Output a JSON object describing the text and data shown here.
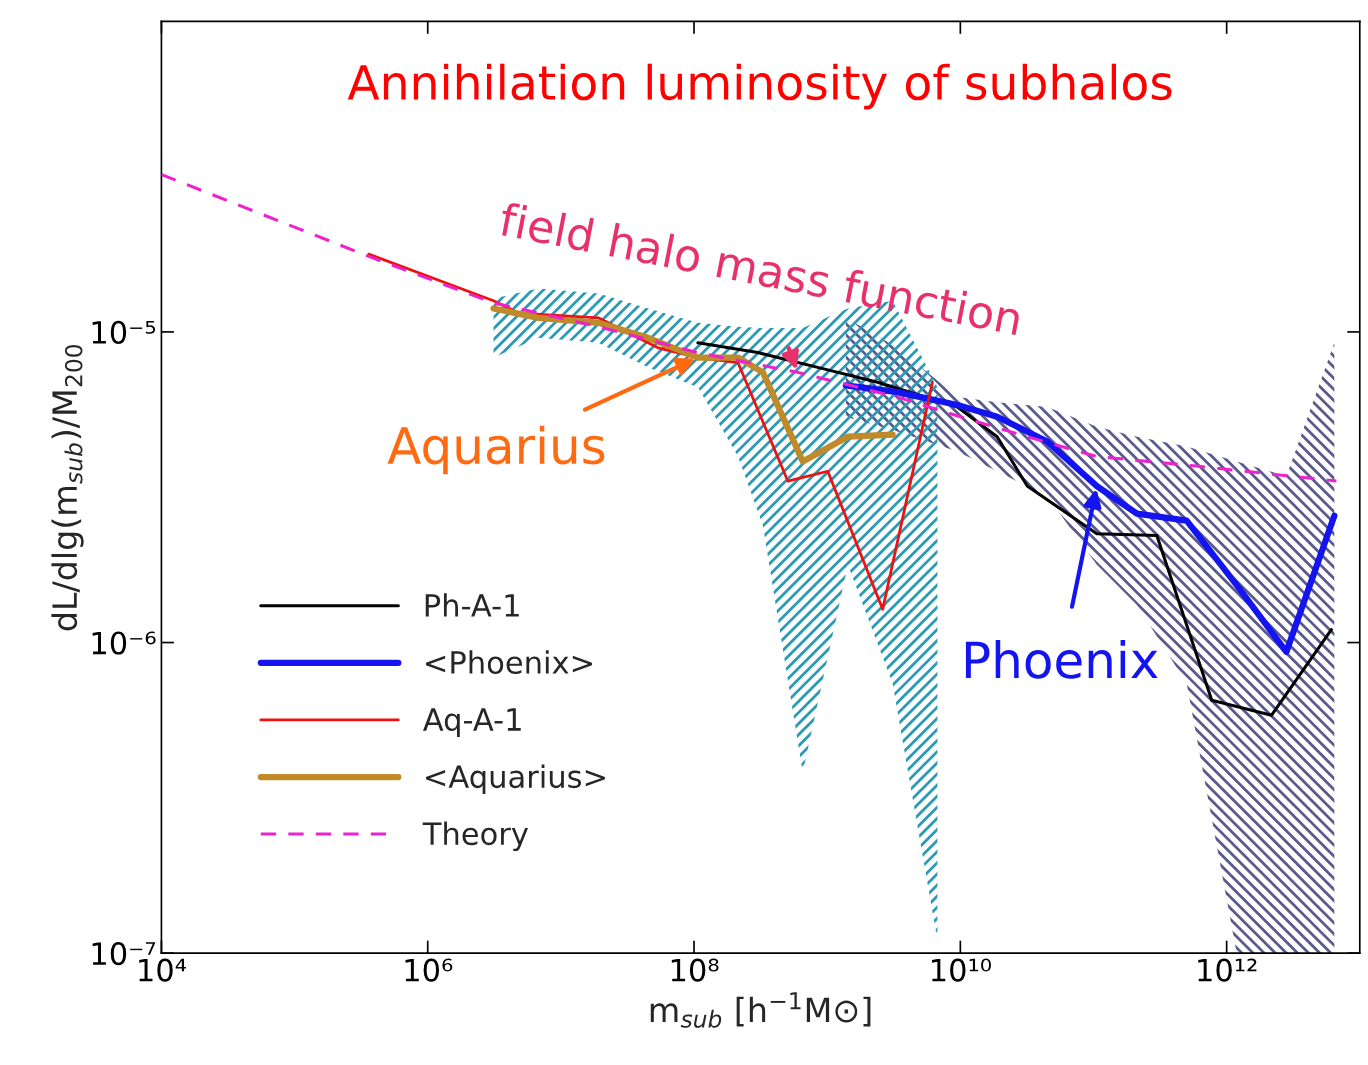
{
  "chart_data": {
    "type": "line",
    "title": "Annihilation luminosity of subhalos",
    "xlabel": "m$_{sub}$ [h$^{−1}$M⊙]",
    "ylabel": "dL/dlg(m$_{sub}$)/M$_{200}$",
    "log": "xy",
    "xlim": [
      10000.0,
      10000000000000.0
    ],
    "ylim": [
      1e-07,
      0.0001
    ],
    "xticks": [
      {
        "value": 10000.0,
        "label": "10⁴"
      },
      {
        "value": 1000000.0,
        "label": "10⁶"
      },
      {
        "value": 100000000.0,
        "label": "10⁸"
      },
      {
        "value": 10000000000.0,
        "label": "10¹⁰"
      },
      {
        "value": 1000000000000.0,
        "label": "10¹²"
      }
    ],
    "yticks": [
      {
        "value": 1e-07,
        "label": "10⁻⁷"
      },
      {
        "value": 1e-06,
        "label": "10⁻⁶"
      },
      {
        "value": 1e-05,
        "label": "10⁻⁵"
      }
    ],
    "grid": false,
    "legend": "lower left",
    "series": [
      {
        "name": "Ph-A-1",
        "color": "#000000",
        "x": [
          107000000.0,
          301000000.0,
          849000000.0,
          2390000000.0,
          9510000000.0,
          18900000000.0,
          31800000000.0,
          106000000000.0,
          299000000000.0,
          773000000000.0,
          2170000000000.0,
          6120000000000.0
        ],
        "values": [
          9.23e-06,
          8.58e-06,
          7.69e-06,
          6.89e-06,
          5.73e-06,
          4.6e-06,
          3.19e-06,
          2.24e-06,
          2.21e-06,
          6.52e-07,
          5.83e-07,
          1.1e-06
        ]
      },
      {
        "name": "<Phoenix>",
        "color": "#1414f0",
        "x": [
          1380000000.0,
          3370000000.0,
          9510000000.0,
          18900000000.0,
          44900000000.0,
          106000000000.0,
          212000000000.0,
          501000000000.0,
          1190000000000.0,
          2810000000000.0,
          6440000000000.0
        ],
        "values": [
          6.73e-06,
          6.4e-06,
          5.82e-06,
          5.33e-06,
          4.44e-06,
          3.19e-06,
          2.6e-06,
          2.47e-06,
          1.53e-06,
          9.33e-07,
          2.56e-06
        ],
        "upper": [
          1.11e-05,
          8.89e-06,
          6.17e-06,
          5.94e-06,
          5.73e-06,
          4.95e-06,
          4.6e-06,
          4.28e-06,
          3.83e-06,
          3.43e-06,
          9.23e-06
        ],
        "lower": [
          5.33e-06,
          4.78e-06,
          4.12e-06,
          3.56e-06,
          2.96e-06,
          1.78e-06,
          1.32e-06,
          7.38e-07,
          1e-07,
          1e-07,
          1e-07
        ]
      },
      {
        "name": "Aq-A-1",
        "color": "#ee1111",
        "x": [
          361000.0,
          3120000.0,
          4810000.0,
          19100000.0,
          53700000.0,
          107000000.0,
          214000000.0,
          506000000.0,
          1010000000.0,
          2610000000.0,
          6170000000.0
        ],
        "values": [
          1.78e-05,
          1.26e-05,
          1.15e-05,
          1.11e-05,
          8.89e-06,
          8.27e-06,
          7.96e-06,
          3.31e-06,
          3.56e-06,
          1.28e-06,
          6.89e-06
        ]
      },
      {
        "name": "<Aquarius>",
        "color": "#c08a2a",
        "x": [
          3120000.0,
          6780000.0,
          19100000.0,
          45200000.0,
          107000000.0,
          214000000.0,
          329000000.0,
          655000000.0,
          1430000000.0,
          3100000000.0,
          6730000000.0
        ],
        "values": [
          1.19e-05,
          1.11e-05,
          1.07e-05,
          9.57e-06,
          8.27e-06,
          8.27e-06,
          7.41e-06,
          3.83e-06,
          4.6e-06,
          4.67e-06,
          null
        ],
        "upper": [
          1.28e-05,
          1.38e-05,
          1.33e-05,
          1.19e-05,
          1.07e-05,
          1.04e-05,
          1.03e-05,
          1.03e-05,
          1.19e-05,
          1.26e-05,
          6.64e-06
        ],
        "lower": [
          8.27e-06,
          9.57e-06,
          9.23e-06,
          7.69e-06,
          6.64e-06,
          3.97e-06,
          2.38e-06,
          3.82e-07,
          1.78e-06,
          7.38e-07,
          1.1e-07
        ]
      },
      {
        "name": "Theory",
        "color": "#ee22cc",
        "line_style": "dashed",
        "x": [
          10000.0,
          361000.0,
          3120000.0,
          19100000.0,
          107000000.0,
          601000000.0,
          3370000000.0,
          10000000000.0,
          31800000000.0,
          106000000000.0,
          596000000000.0,
          6670000000000.0
        ],
        "values": [
          3.21e-05,
          1.75e-05,
          1.24e-05,
          1.04e-05,
          8.57e-06,
          7.41e-06,
          6.17e-06,
          5.33e-06,
          4.6e-06,
          3.97e-06,
          3.7e-06,
          3.31e-06
        ]
      }
    ],
    "annotations": [
      {
        "text": "field halo mass function",
        "x": 601000000.0,
        "y": 7.41e-06
      },
      {
        "text": "Aquarius",
        "x": 107000000.0,
        "y": 8.27e-06
      },
      {
        "text": "Phoenix",
        "x": 106000000000.0,
        "y": 3.19e-06
      }
    ]
  }
}
